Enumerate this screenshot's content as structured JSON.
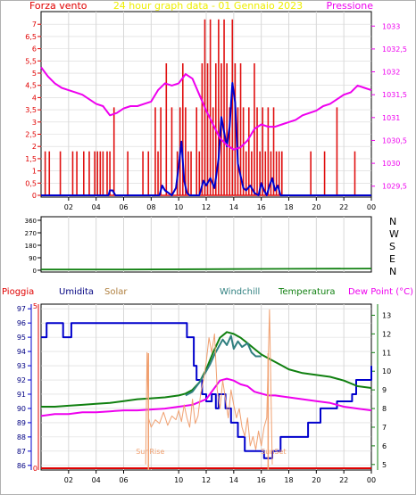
{
  "colors": {
    "background": "#ffffff",
    "frame": "#000000",
    "grid": "#d8d8d8",
    "wind_speed": "#e01010",
    "pressure": "#ee00ee",
    "rain": "#e00000",
    "humidity": "#0000cc",
    "solar": "#f0a070",
    "windchill": "#308080",
    "temperature": "#108010",
    "dew_point": "#ee00ee",
    "sun_event": "#f0a070",
    "title": "#eeee00"
  },
  "header": {
    "title": "24 hour graph data - 01 Gennaio 2023"
  },
  "x_axis": {
    "ticks": [
      "02",
      "04",
      "06",
      "08",
      "10",
      "12",
      "14",
      "16",
      "18",
      "20",
      "22",
      "00"
    ],
    "bottom_ticks": [
      "02",
      "04",
      "06",
      "10",
      "12",
      "14",
      "16",
      "18",
      "20",
      "22",
      "00"
    ]
  },
  "chart_data": [
    {
      "type": "line",
      "panel": "wind-pressure",
      "left_axis": {
        "label": "Forza vento",
        "ticks": [
          "7",
          "6,5",
          "6",
          "5,5",
          "5",
          "4,5",
          "4",
          "3,5",
          "3",
          "2,5",
          "2",
          "1,5",
          "1",
          "0,5",
          "0"
        ],
        "ylim": [
          0,
          7.3
        ]
      },
      "right_axis": {
        "label": "Pressione",
        "ticks": [
          "1033",
          "1032,5",
          "1032",
          "1031,5",
          "1031",
          "1030,5",
          "1030",
          "1029,5"
        ],
        "ylim": [
          1029.3,
          1033.2
        ]
      },
      "series": [
        {
          "name": "Forza vento",
          "axis": "left",
          "style": "bars",
          "x": [
            0.3,
            0.6,
            1.4,
            2.3,
            2.6,
            3.1,
            3.5,
            3.9,
            4.1,
            4.3,
            4.5,
            4.8,
            5.0,
            5.3,
            6.3,
            7.4,
            7.8,
            8.3,
            8.5,
            8.7,
            9.1,
            9.5,
            9.9,
            10.1,
            10.3,
            10.5,
            10.7,
            10.9,
            11.3,
            11.5,
            11.7,
            11.9,
            12.1,
            12.3,
            12.5,
            12.7,
            12.9,
            13.1,
            13.3,
            13.5,
            13.7,
            13.9,
            14.1,
            14.3,
            14.5,
            14.7,
            14.9,
            15.1,
            15.3,
            15.5,
            15.7,
            15.9,
            16.1,
            16.3,
            16.5,
            16.7,
            16.9,
            17.1,
            17.3,
            17.5,
            19.6,
            20.6,
            21.5,
            22.8
          ],
          "y": [
            1.8,
            1.8,
            1.8,
            1.8,
            1.8,
            1.8,
            1.8,
            1.8,
            1.8,
            1.8,
            1.8,
            1.8,
            1.8,
            3.6,
            1.8,
            1.8,
            1.8,
            3.6,
            1.8,
            3.6,
            5.4,
            3.6,
            1.8,
            3.6,
            5.4,
            3.6,
            1.8,
            1.8,
            3.6,
            1.8,
            5.4,
            7.2,
            5.4,
            7.2,
            3.6,
            5.4,
            7.2,
            5.4,
            7.2,
            5.4,
            3.6,
            7.2,
            5.4,
            3.6,
            5.4,
            3.6,
            1.8,
            3.6,
            1.8,
            5.4,
            3.6,
            1.8,
            3.6,
            1.8,
            3.6,
            1.8,
            3.6,
            1.8,
            1.8,
            1.8,
            1.8,
            1.8,
            3.6,
            1.8
          ]
        },
        {
          "name": "Vento medio",
          "axis": "left",
          "style": "line",
          "x": [
            0,
            4.9,
            5.0,
            5.2,
            5.4,
            8.6,
            8.8,
            9.0,
            9.5,
            9.8,
            10.0,
            10.2,
            10.4,
            10.6,
            10.8,
            11.5,
            11.8,
            12.0,
            12.3,
            12.6,
            12.9,
            13.1,
            13.3,
            13.5,
            13.7,
            13.9,
            14.1,
            14.3,
            14.5,
            14.7,
            14.9,
            15.2,
            15.5,
            15.8,
            16.0,
            16.2,
            16.4,
            16.6,
            16.8,
            17.0,
            17.2,
            17.4,
            24
          ],
          "y": [
            0,
            0,
            0.2,
            0.2,
            0,
            0,
            0.4,
            0.2,
            0,
            0.3,
            1.2,
            2.2,
            0.6,
            0.1,
            0,
            0,
            0.6,
            0.4,
            0.7,
            0.3,
            1.5,
            3.2,
            2.6,
            2.0,
            2.8,
            4.6,
            3.8,
            1.3,
            0.8,
            0.3,
            0.2,
            0.4,
            0.1,
            0,
            0.5,
            0.2,
            0,
            0.4,
            0.7,
            0.2,
            0.4,
            0,
            0
          ]
        },
        {
          "name": "Pressione",
          "axis": "right",
          "style": "line",
          "x": [
            0,
            0.5,
            1,
            1.5,
            2,
            2.5,
            3,
            3.5,
            4,
            4.5,
            5,
            5.5,
            6,
            6.5,
            7,
            7.5,
            8,
            8.5,
            9,
            9.5,
            10,
            10.5,
            11,
            11.5,
            12,
            12.5,
            13,
            13.5,
            14,
            14.5,
            15,
            15.5,
            16,
            16.5,
            17,
            17.5,
            18,
            18.5,
            19,
            19.5,
            20,
            20.5,
            21,
            21.5,
            22,
            22.5,
            23,
            23.5,
            24
          ],
          "y": [
            1032.1,
            1031.9,
            1031.75,
            1031.65,
            1031.6,
            1031.55,
            1031.5,
            1031.4,
            1031.3,
            1031.25,
            1031.05,
            1031.1,
            1031.2,
            1031.25,
            1031.25,
            1031.3,
            1031.35,
            1031.6,
            1031.75,
            1031.7,
            1031.75,
            1031.95,
            1031.85,
            1031.5,
            1031.15,
            1030.85,
            1030.55,
            1030.4,
            1030.3,
            1030.35,
            1030.5,
            1030.75,
            1030.85,
            1030.8,
            1030.8,
            1030.85,
            1030.9,
            1030.95,
            1031.05,
            1031.1,
            1031.15,
            1031.25,
            1031.3,
            1031.4,
            1031.5,
            1031.55,
            1031.7,
            1031.65,
            1031.6
          ]
        }
      ]
    },
    {
      "type": "line",
      "panel": "wind-direction",
      "left_axis": {
        "label": "",
        "ticks": [
          "360",
          "270",
          "180",
          "90",
          "0"
        ],
        "ylim": [
          0,
          360
        ]
      },
      "right_axis": {
        "label": "",
        "ticks": [
          "N",
          "W",
          "S",
          "E",
          "N"
        ]
      },
      "series": [
        {
          "name": "Direzione",
          "axis": "left",
          "style": "line",
          "x": [
            0,
            6,
            12,
            18,
            24
          ],
          "y": [
            5,
            5,
            8,
            10,
            12
          ]
        }
      ]
    },
    {
      "type": "line",
      "panel": "humidity-temperature",
      "labels": [
        "Pioggia",
        "Umidita",
        "Solar",
        "Windchill",
        "Temperatura",
        "Dew Point (°C)"
      ],
      "left_axis": {
        "label": "",
        "ticks": [
          "97",
          "96",
          "95",
          "94",
          "93",
          "92",
          "91",
          "90",
          "89",
          "88",
          "87",
          "86"
        ],
        "ylim": [
          85.8,
          97.2
        ]
      },
      "left_inner_axis": {
        "ticks": [
          "5",
          "0"
        ]
      },
      "right_axis": {
        "label": "",
        "ticks": [
          "13",
          "12",
          "11",
          "10",
          "9",
          "8",
          "7",
          "6",
          "5"
        ],
        "ylim": [
          4.8,
          13.5
        ]
      },
      "annotations": [
        {
          "text": "SunRise",
          "x": 7.8
        },
        {
          "text": "SunSet",
          "x": 16.5
        }
      ],
      "series": [
        {
          "name": "Umidita",
          "axis": "left",
          "style": "step",
          "x": [
            0,
            0.4,
            0.8,
            1.6,
            2.2,
            3.0,
            3.3,
            4.2,
            5.4,
            6.4,
            7.6,
            8.2,
            8.9,
            9.6,
            10.3,
            10.6,
            11.1,
            11.3,
            11.7,
            12.0,
            12.4,
            12.7,
            12.9,
            13.4,
            13.8,
            14.3,
            14.8,
            15.6,
            15.8,
            16.2,
            16.8,
            17.4,
            18.8,
            19.4,
            20.3,
            21.5,
            22.6,
            22.9,
            24
          ],
          "y": [
            95,
            96,
            96,
            95,
            96,
            96,
            96,
            96,
            96,
            96,
            96,
            96,
            96,
            96,
            96,
            95,
            93,
            92,
            91,
            90.5,
            91,
            90,
            91,
            90,
            89,
            88,
            87,
            87,
            87,
            86.5,
            87,
            88,
            88,
            89,
            90,
            90.5,
            91,
            92,
            93
          ]
        },
        {
          "name": "Temperatura",
          "axis": "right",
          "style": "line",
          "x": [
            0,
            1,
            2,
            3,
            4,
            5,
            6,
            7,
            8,
            9,
            10,
            10.5,
            11,
            11.5,
            12,
            12.5,
            13,
            13.5,
            14,
            14.5,
            15,
            15.5,
            16,
            16.5,
            17,
            17.5,
            18,
            19,
            20,
            21,
            22,
            23,
            24
          ],
          "y": [
            8.1,
            8.1,
            8.15,
            8.2,
            8.25,
            8.3,
            8.4,
            8.5,
            8.55,
            8.6,
            8.7,
            8.8,
            9.0,
            9.4,
            10.1,
            11.0,
            11.8,
            12.1,
            12.0,
            11.8,
            11.5,
            11.2,
            10.9,
            10.7,
            10.5,
            10.3,
            10.1,
            9.9,
            9.8,
            9.7,
            9.5,
            9.2,
            9.1
          ]
        },
        {
          "name": "Windchill",
          "axis": "right",
          "style": "line",
          "x": [
            10.5,
            11,
            11.5,
            12,
            12.3,
            12.6,
            12.9,
            13.2,
            13.5,
            13.8,
            14.0,
            14.3,
            14.6,
            15.0,
            15.3,
            15.6,
            16.0
          ],
          "y": [
            8.7,
            8.9,
            9.4,
            10.0,
            10.4,
            10.9,
            11.3,
            11.7,
            11.4,
            11.9,
            11.2,
            11.6,
            11.3,
            11.5,
            11.0,
            10.8,
            10.8
          ]
        },
        {
          "name": "Dew Point (°C)",
          "axis": "right",
          "style": "line",
          "x": [
            0,
            1,
            2,
            3,
            4,
            5,
            6,
            7,
            8,
            9,
            10,
            11,
            12,
            12.5,
            13,
            13.5,
            14,
            14.5,
            15,
            15.5,
            16,
            16.5,
            17,
            18,
            19,
            20,
            21,
            22,
            23,
            24
          ],
          "y": [
            7.6,
            7.7,
            7.7,
            7.8,
            7.8,
            7.85,
            7.9,
            7.9,
            7.95,
            8.0,
            8.1,
            8.2,
            8.5,
            9.0,
            9.5,
            9.6,
            9.5,
            9.3,
            9.2,
            8.9,
            8.8,
            8.7,
            8.7,
            8.6,
            8.5,
            8.4,
            8.3,
            8.1,
            8.0,
            7.9
          ]
        },
        {
          "name": "Solar",
          "axis": "right",
          "style": "line",
          "x": [
            7.6,
            7.7,
            7.8,
            8.0,
            8.3,
            8.6,
            8.9,
            9.2,
            9.5,
            9.8,
            10.0,
            10.2,
            10.4,
            10.6,
            10.8,
            11.0,
            11.2,
            11.4,
            11.6,
            11.8,
            12.0,
            12.2,
            12.4,
            12.6,
            12.8,
            13.0,
            13.2,
            13.4,
            13.6,
            13.8,
            14.0,
            14.2,
            14.4,
            14.6,
            14.8,
            15.0,
            15.2,
            15.4,
            15.6,
            15.8,
            16.0,
            16.2,
            16.4,
            16.6,
            16.8
          ],
          "y": [
            5.0,
            11.0,
            7.5,
            7.0,
            7.4,
            7.2,
            7.8,
            7.1,
            7.6,
            7.4,
            7.9,
            7.3,
            8.2,
            7.5,
            7.0,
            8.5,
            7.2,
            7.6,
            8.8,
            9.5,
            10.5,
            11.8,
            11.0,
            12.0,
            9.0,
            8.0,
            9.5,
            8.5,
            7.5,
            9.0,
            8.2,
            7.5,
            8.0,
            7.0,
            6.5,
            7.5,
            6.0,
            6.5,
            5.8,
            6.8,
            6.0,
            7.0,
            7.5,
            13.3,
            5.0
          ]
        },
        {
          "name": "Pioggia",
          "axis": "left_inner",
          "style": "line",
          "x": [
            0,
            24
          ],
          "y": [
            0,
            0
          ]
        }
      ]
    }
  ]
}
